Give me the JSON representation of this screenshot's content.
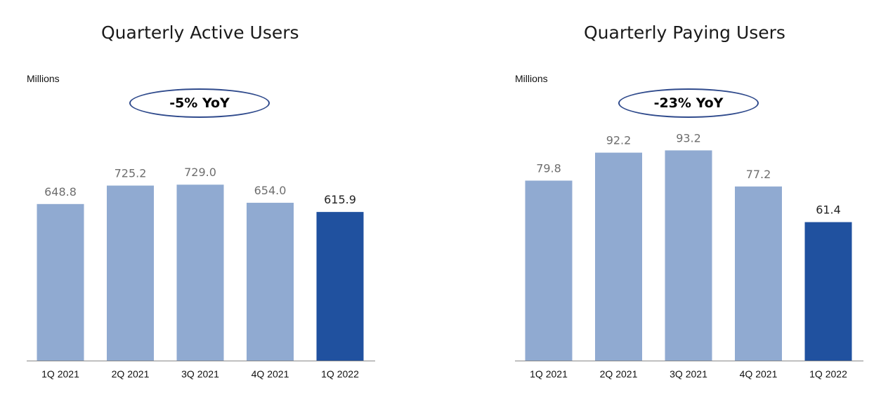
{
  "colors": {
    "bar": "#90aad1",
    "highlight": "#20519f",
    "label_grey": "#6e6e6e",
    "label_dark": "#222222",
    "axis": "#888888"
  },
  "chart_data": [
    {
      "type": "bar",
      "title": "Quarterly Active Users",
      "units": "Millions",
      "callout": "-5% YoY",
      "categories": [
        "1Q 2021",
        "2Q 2021",
        "3Q 2021",
        "4Q 2021",
        "1Q 2022"
      ],
      "values": [
        648.8,
        725.2,
        729.0,
        654.0,
        615.9
      ],
      "value_labels": [
        "648.8",
        "725.2",
        "729.0",
        "654.0",
        "615.9"
      ],
      "highlight_index": 4,
      "ylim": [
        0,
        1000
      ]
    },
    {
      "type": "bar",
      "title": "Quarterly Paying Users",
      "units": "Millions",
      "callout": "-23% YoY",
      "categories": [
        "1Q 2021",
        "2Q 2021",
        "3Q 2021",
        "4Q 2021",
        "1Q 2022"
      ],
      "values": [
        79.8,
        92.2,
        93.2,
        77.2,
        61.4
      ],
      "value_labels": [
        "79.8",
        "92.2",
        "93.2",
        "77.2",
        "61.4"
      ],
      "highlight_index": 4,
      "ylim": [
        0,
        107
      ]
    }
  ]
}
